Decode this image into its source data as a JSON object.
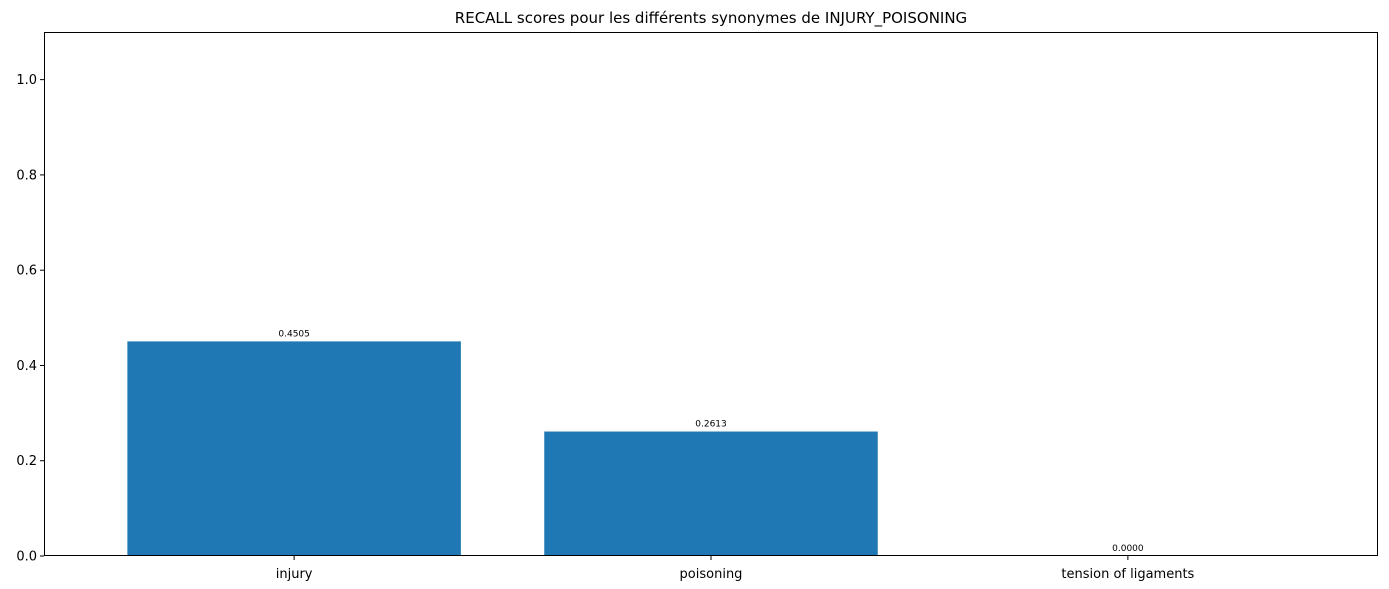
{
  "chart_data": {
    "type": "bar",
    "title": "RECALL scores pour les différents synonymes de INJURY_POISONING",
    "xlabel": "",
    "ylabel": "",
    "categories": [
      "injury",
      "poisoning",
      "tension of ligaments"
    ],
    "values": [
      0.4505,
      0.2613,
      0.0
    ],
    "value_labels": [
      "0.4505",
      "0.2613",
      "0.0000"
    ],
    "ylim": [
      0,
      1.1
    ],
    "yticks": [
      0.0,
      0.2,
      0.4,
      0.6,
      0.8,
      1.0
    ],
    "ytick_labels": [
      "0.0",
      "0.2",
      "0.4",
      "0.6",
      "0.8",
      "1.0"
    ],
    "grid": false,
    "legend": "none",
    "bar_color": "#1f77b4"
  }
}
